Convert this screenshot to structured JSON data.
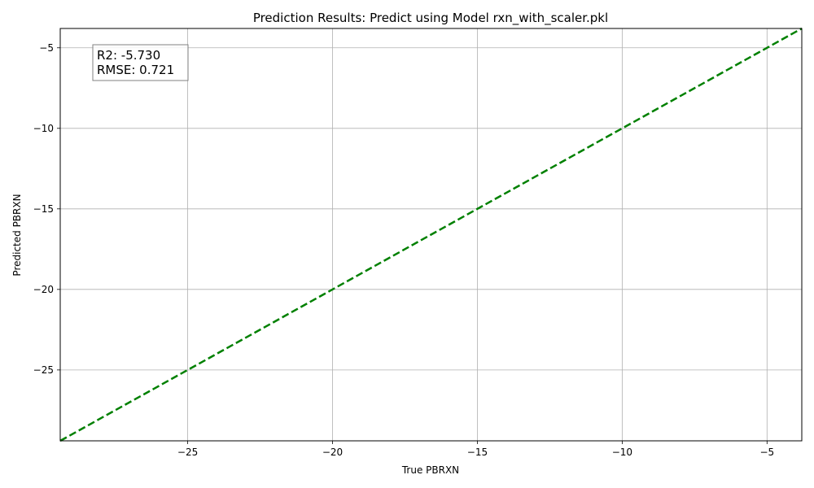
{
  "chart_data": {
    "type": "line",
    "title": "Prediction Results: Predict using Model rxn_with_scaler.pkl",
    "xlabel": "True PBRXN",
    "ylabel": "Predicted PBRXN",
    "xlim": [
      -29.4,
      -3.8
    ],
    "ylim": [
      -29.4,
      -3.8
    ],
    "xticks": [
      -25,
      -20,
      -15,
      -10,
      -5
    ],
    "yticks": [
      -25,
      -20,
      -15,
      -10,
      -5
    ],
    "xtick_labels": [
      "−25",
      "−20",
      "−15",
      "−10",
      "−5"
    ],
    "ytick_labels": [
      "−25",
      "−20",
      "−15",
      "−10",
      "−5"
    ],
    "grid": true,
    "series": [
      {
        "style": "dashed",
        "color": "#008000",
        "x": [
          -29.4,
          -3.8
        ],
        "y": [
          -29.4,
          -3.8
        ]
      }
    ],
    "annotation": {
      "position": "top-left",
      "lines": [
        "R2: -5.730",
        "RMSE: 0.721"
      ]
    }
  }
}
